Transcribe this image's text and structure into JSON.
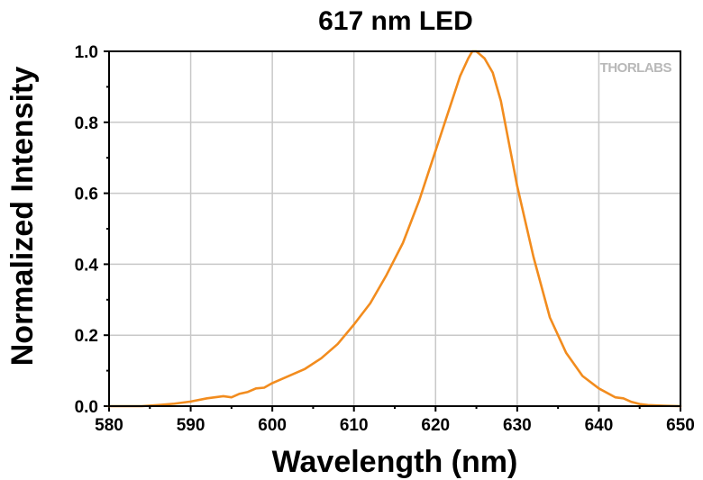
{
  "chart_data": {
    "type": "line",
    "title": "617 nm LED",
    "xlabel": "Wavelength (nm)",
    "ylabel": "Normalized Intensity",
    "xlim": [
      580,
      650
    ],
    "ylim": [
      0,
      1.0
    ],
    "x_ticks": [
      "580",
      "590",
      "600",
      "610",
      "620",
      "630",
      "640",
      "650"
    ],
    "y_ticks": [
      "0.0",
      "0.2",
      "0.4",
      "0.6",
      "0.8",
      "1.0"
    ],
    "grid": true,
    "line_color": "#f28c1e",
    "watermark": "THORLABS",
    "series": [
      {
        "x": [
          580,
          584,
          586,
          588,
          590,
          592,
          594,
          595,
          596,
          597,
          598,
          599,
          600,
          602,
          604,
          606,
          608,
          610,
          612,
          614,
          616,
          618,
          620,
          621,
          622,
          623,
          624,
          624.5,
          625,
          625.5,
          626,
          627,
          628,
          629,
          630,
          632,
          634,
          636,
          638,
          640,
          642,
          643,
          644,
          645,
          646,
          648,
          650
        ],
        "y": [
          0.0,
          0.0,
          0.003,
          0.007,
          0.013,
          0.022,
          0.028,
          0.025,
          0.035,
          0.04,
          0.05,
          0.052,
          0.065,
          0.085,
          0.105,
          0.135,
          0.175,
          0.23,
          0.29,
          0.37,
          0.46,
          0.58,
          0.72,
          0.79,
          0.86,
          0.93,
          0.98,
          1.0,
          1.0,
          0.99,
          0.98,
          0.94,
          0.86,
          0.74,
          0.62,
          0.42,
          0.25,
          0.15,
          0.085,
          0.05,
          0.025,
          0.022,
          0.012,
          0.006,
          0.003,
          0.001,
          0.0
        ]
      }
    ]
  }
}
